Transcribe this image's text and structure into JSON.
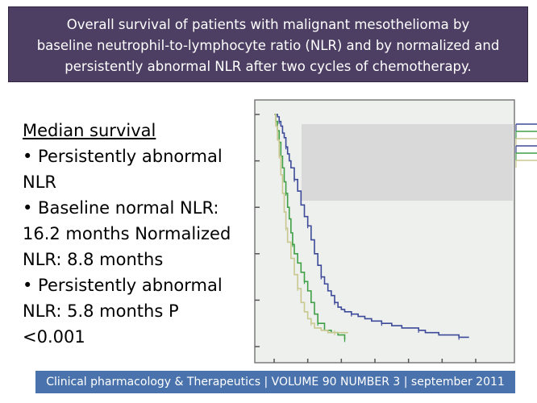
{
  "title": {
    "lines": [
      "Overall survival of patients with malignant mesothelioma by",
      "baseline neutrophil-to-lymphocyte ratio (NLR) and by normalized and",
      "persistently abnormal NLR after two cycles of chemotherapy."
    ]
  },
  "median_survival": {
    "heading": "Median survival",
    "lines": [
      "• Persistently abnormal",
      "NLR",
      "• Baseline normal NLR:",
      "16.2 months Normalized",
      "NLR: 8.8 months",
      "• Persistently abnormal",
      "NLR: 5.8 months P",
      "<0.001"
    ]
  },
  "chart_data": {
    "type": "line",
    "step": true,
    "xlabel": "",
    "ylabel": "",
    "xlim": [
      0,
      60
    ],
    "ylim": [
      0,
      1
    ],
    "grid": false,
    "legend": "top-right",
    "series": [
      {
        "color": "#3d4a99",
        "x": [
          0,
          0.5,
          1,
          1.5,
          2,
          2.5,
          3,
          3.5,
          4,
          4.5,
          5,
          6,
          7,
          8,
          9,
          10,
          11,
          12,
          13,
          14,
          15,
          16,
          17,
          18,
          19,
          20,
          21,
          23,
          25,
          27,
          29,
          32,
          35,
          38,
          40,
          43,
          45,
          49,
          52,
          55,
          58
        ],
        "y": [
          1,
          1,
          0.99,
          0.97,
          0.95,
          0.92,
          0.9,
          0.86,
          0.83,
          0.8,
          0.77,
          0.72,
          0.67,
          0.61,
          0.56,
          0.52,
          0.46,
          0.4,
          0.35,
          0.3,
          0.27,
          0.24,
          0.22,
          0.19,
          0.17,
          0.16,
          0.15,
          0.14,
          0.13,
          0.12,
          0.11,
          0.1,
          0.09,
          0.08,
          0.08,
          0.07,
          0.06,
          0.05,
          0.05,
          0.04,
          0.04
        ]
      },
      {
        "color": "#3fa046",
        "x": [
          0,
          0.5,
          1,
          1.5,
          2,
          2.5,
          3,
          3.5,
          4,
          4.5,
          5,
          5.5,
          6,
          7,
          8,
          9,
          10,
          11,
          12,
          13,
          15,
          17,
          19,
          21
        ],
        "y": [
          1,
          0.97,
          0.93,
          0.88,
          0.82,
          0.77,
          0.71,
          0.66,
          0.6,
          0.55,
          0.49,
          0.44,
          0.4,
          0.36,
          0.32,
          0.28,
          0.24,
          0.19,
          0.14,
          0.1,
          0.07,
          0.06,
          0.05,
          0.03
        ]
      },
      {
        "color": "#c8c88e",
        "x": [
          0,
          0.5,
          1,
          1.5,
          2,
          2.5,
          3,
          3.5,
          4,
          5,
          6,
          7,
          8,
          9,
          10,
          11,
          12,
          14,
          16,
          18,
          20,
          22
        ],
        "y": [
          1,
          0.95,
          0.89,
          0.82,
          0.74,
          0.66,
          0.58,
          0.51,
          0.45,
          0.38,
          0.31,
          0.25,
          0.19,
          0.15,
          0.12,
          0.1,
          0.08,
          0.07,
          0.06,
          0.06,
          0.06,
          0.06
        ]
      }
    ],
    "legend_entries": [
      {
        "color": "#3d4a99"
      },
      {
        "color": "#3fa046"
      },
      {
        "color": "#c8c88e"
      },
      {
        "color": "#3d4a99"
      },
      {
        "color": "#3fa046"
      },
      {
        "color": "#c8c88e"
      }
    ]
  },
  "footer": {
    "citation": "Clinical pharmacology & Therapeutics | VOLUME 90 NUMBER 3 | september 2011"
  }
}
